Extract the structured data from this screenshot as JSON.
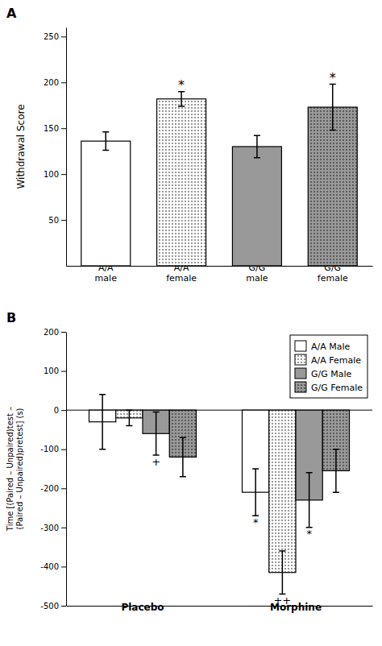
{
  "chart_data": [
    {
      "type": "bar",
      "title": "A",
      "categories": [
        "A/A\nmale",
        "A/A\nfemale",
        "G/G\nmale",
        "G/G\nfemale"
      ],
      "values": [
        136,
        182,
        130,
        173
      ],
      "errors": [
        10,
        8,
        12,
        25
      ],
      "colors": [
        "white",
        "white",
        "#999999",
        "#999999"
      ],
      "y_label": "Withdrawal Score",
      "ylim": [
        0,
        260
      ],
      "yticks": [
        50,
        100,
        150,
        200,
        250
      ],
      "annotations": [
        {
          "text": "*",
          "category": "A/A\nfemale"
        },
        {
          "text": "*",
          "category": "G/G\nfemale"
        }
      ]
    },
    {
      "type": "bar",
      "title": "B",
      "categories": [
        "Placebo",
        "Morphine"
      ],
      "series": [
        {
          "name": "A/A Male",
          "color": "white",
          "values": [
            -30,
            -210
          ],
          "errors": [
            70,
            60
          ]
        },
        {
          "name": "A/A Female",
          "color": "white",
          "values": [
            -20,
            -415
          ],
          "errors": [
            20,
            55
          ]
        },
        {
          "name": "G/G Male",
          "color": "#999999",
          "values": [
            -60,
            -230
          ],
          "errors": [
            55,
            70
          ]
        },
        {
          "name": "G/G Female",
          "color": "#999999",
          "values": [
            -120,
            -155
          ],
          "errors": [
            50,
            55
          ]
        }
      ],
      "y_label": "Time [(Paired – Unpaired)test –\n(Paired – Unpaired)pretest] (s)",
      "ylim": [
        -500,
        200
      ],
      "yticks": [
        -500,
        -400,
        -300,
        -200,
        -100,
        0,
        100,
        200
      ],
      "legend": "upper right",
      "annotations": [
        {
          "text": "+",
          "category": "Placebo",
          "series": "G/G Male"
        },
        {
          "text": "*",
          "category": "Morphine",
          "series": "A/A Male"
        },
        {
          "text": "++",
          "category": "Morphine",
          "series": "A/A Female"
        },
        {
          "text": "*",
          "category": "Morphine",
          "series": "G/G Male"
        }
      ]
    }
  ]
}
